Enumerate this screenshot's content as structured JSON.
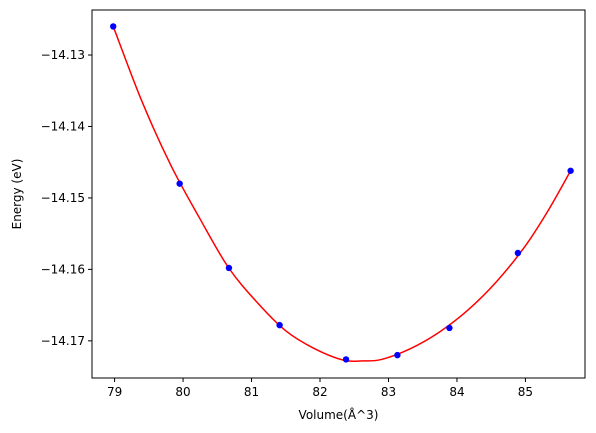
{
  "chart_data": {
    "type": "scatter",
    "title": "",
    "xlabel": "Volume(Å^3)",
    "ylabel": "Energy (eV)",
    "xlim": [
      78.67,
      85.87
    ],
    "ylim": [
      -14.1752,
      -14.1237
    ],
    "xticks": [
      79,
      80,
      81,
      82,
      83,
      84,
      85
    ],
    "yticks": [
      -14.13,
      -14.14,
      -14.15,
      -14.16,
      -14.17
    ],
    "xtick_labels": [
      "79",
      "80",
      "81",
      "82",
      "83",
      "84",
      "85"
    ],
    "ytick_labels": [
      "−14.13",
      "−14.14",
      "−14.15",
      "−14.16",
      "−14.17"
    ],
    "grid": false,
    "legend": "none",
    "series": [
      {
        "kind": "points",
        "color": "#0000ff",
        "x": [
          78.98,
          79.95,
          80.67,
          81.41,
          82.38,
          83.13,
          83.89,
          84.89,
          85.66
        ],
        "y": [
          -14.126,
          -14.148,
          -14.1598,
          -14.1678,
          -14.1726,
          -14.172,
          -14.1682,
          -14.1577,
          -14.1462
        ]
      },
      {
        "kind": "fit-line",
        "color": "#ff0000",
        "x": [
          78.98,
          79.4,
          79.82,
          80.24,
          80.66,
          81.08,
          81.5,
          81.92,
          82.34,
          82.62,
          82.9,
          83.32,
          83.74,
          84.16,
          84.58,
          85.0,
          85.33,
          85.66
        ],
        "y": [
          -14.126,
          -14.1365,
          -14.1454,
          -14.1528,
          -14.1597,
          -14.1646,
          -14.1686,
          -14.1711,
          -14.1727,
          -14.1728,
          -14.1726,
          -14.1711,
          -14.1688,
          -14.1657,
          -14.1617,
          -14.1567,
          -14.1518,
          -14.1462
        ]
      }
    ]
  }
}
